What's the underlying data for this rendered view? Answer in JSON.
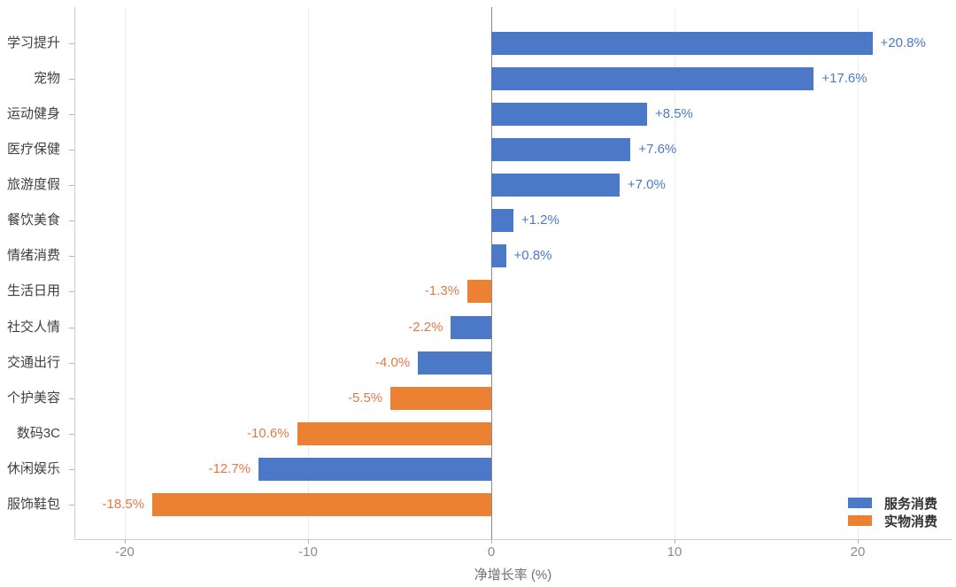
{
  "chart_data": {
    "type": "bar",
    "orientation": "horizontal",
    "title": "",
    "xlabel": "净增长率 (%)",
    "ylabel": "",
    "categories": [
      "学习提升",
      "宠物",
      "运动健身",
      "医疗保健",
      "旅游度假",
      "餐饮美食",
      "情绪消费",
      "生活日用",
      "社交人情",
      "交通出行",
      "个护美容",
      "数码3C",
      "休闲娱乐",
      "服饰鞋包"
    ],
    "values": [
      20.8,
      17.6,
      8.5,
      7.6,
      7.0,
      1.2,
      0.8,
      -1.3,
      -2.2,
      -4.0,
      -5.5,
      -10.6,
      -12.7,
      -18.5
    ],
    "bar_labels": [
      "+20.8%",
      "+17.6%",
      "+8.5%",
      "+7.6%",
      "+7.0%",
      "+1.2%",
      "+0.8%",
      "-1.3%",
      "-2.2%",
      "-4.0%",
      "-5.5%",
      "-10.6%",
      "-12.7%",
      "-18.5%"
    ],
    "series_of": [
      "服务消费",
      "服务消费",
      "服务消费",
      "服务消费",
      "服务消费",
      "服务消费",
      "服务消费",
      "实物消费",
      "服务消费",
      "服务消费",
      "实物消费",
      "实物消费",
      "服务消费",
      "实物消费"
    ],
    "x_ticks": [
      -20,
      -10,
      0,
      10,
      20
    ],
    "x_tick_labels": [
      "-20",
      "-10",
      "0",
      "10",
      "20"
    ],
    "xlim": [
      -22.8,
      25.1
    ],
    "grid": "vertical gridlines at each x tick; darker vertical line at zero",
    "legend": {
      "position": "lower right",
      "entries": [
        {
          "label": "服务消费",
          "color": "#4b79c8"
        },
        {
          "label": "实物消费",
          "color": "#ec8033"
        }
      ]
    },
    "value_label_colors": {
      "positive": "#4b79c8",
      "negative": "#e5784a"
    }
  }
}
